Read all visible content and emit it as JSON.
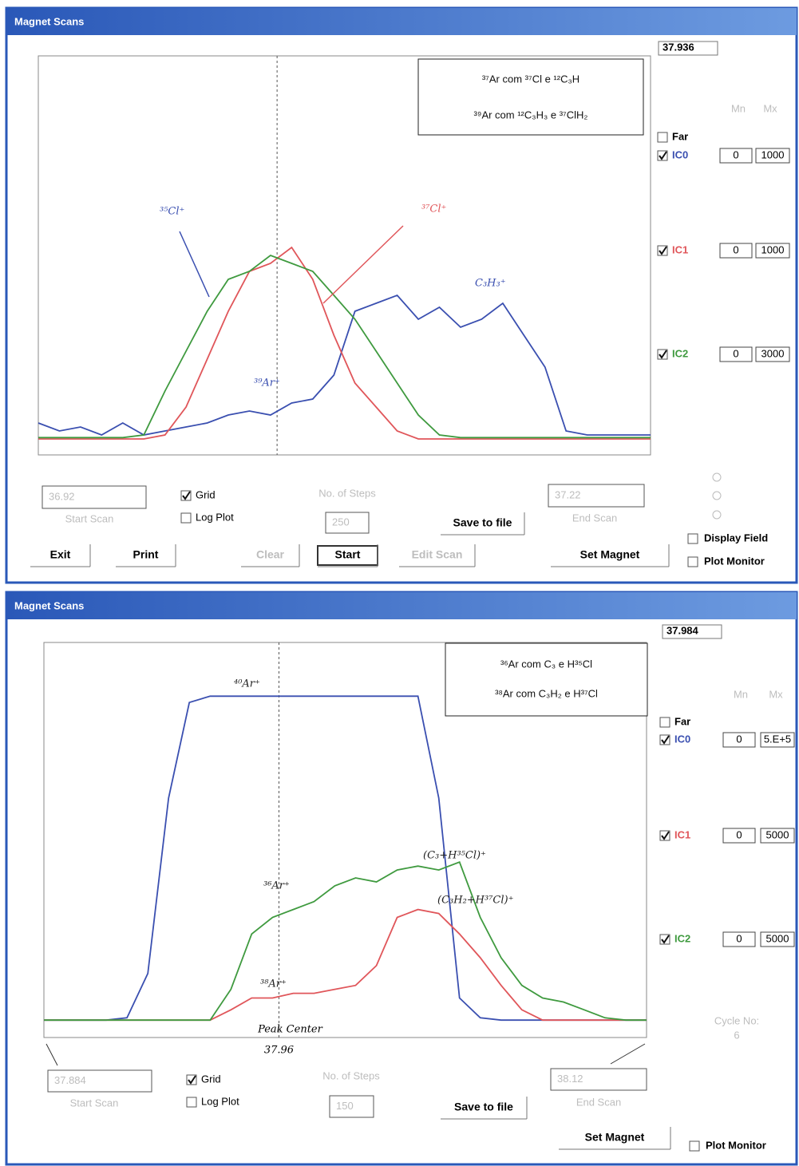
{
  "windows": [
    {
      "title": "Magnet Scans",
      "center_value": "37.936",
      "note": [
        "³⁷Ar com ³⁷Cl e ¹²C₃H",
        "³⁹Ar com ¹²C₃H₃ e ³⁷ClH₂"
      ],
      "annotations": [
        "³⁵Cl⁺",
        "³⁷Cl⁺",
        "C₃H₃⁺",
        "³⁹Ar⁺"
      ],
      "column_headers": [
        "Mn",
        "Mx"
      ],
      "far": {
        "label": "Far",
        "checked": false
      },
      "detectors": [
        {
          "name": "IC0",
          "checked": true,
          "color": "#3a4fb0",
          "min": 0,
          "max": 1000,
          "trace": [
            80,
            60,
            70,
            50,
            80,
            50,
            60,
            70,
            80,
            100,
            110,
            100,
            130,
            140,
            200,
            360,
            380,
            400,
            340,
            370,
            320,
            340,
            380,
            300,
            220,
            60,
            50,
            50,
            50,
            50
          ]
        },
        {
          "name": "IC1",
          "checked": true,
          "color": "#e0565a",
          "min": 0,
          "max": 1000,
          "trace": [
            40,
            40,
            40,
            40,
            40,
            40,
            50,
            120,
            240,
            360,
            460,
            480,
            520,
            440,
            300,
            180,
            120,
            60,
            40,
            40,
            40,
            40,
            40,
            40,
            40,
            40,
            40,
            40,
            40,
            40
          ]
        },
        {
          "name": "IC2",
          "checked": true,
          "color": "#3f9a3f",
          "min": 0,
          "max": 3000,
          "trace": [
            130,
            130,
            130,
            130,
            130,
            150,
            480,
            780,
            1080,
            1320,
            1380,
            1500,
            1440,
            1380,
            1200,
            1020,
            780,
            540,
            300,
            150,
            130,
            130,
            130,
            130,
            130,
            130,
            130,
            130,
            130,
            130
          ]
        }
      ],
      "start_scan": {
        "value": 36.92,
        "label": "Start Scan"
      },
      "end_scan": {
        "value": 37.22,
        "label": "End Scan"
      },
      "grid": {
        "label": "Grid",
        "checked": true
      },
      "log_plot": {
        "label": "Log Plot",
        "checked": false
      },
      "steps": {
        "label": "No. of Steps",
        "value": 250
      },
      "save": "Save to file",
      "options": [
        {
          "label": "Display Field",
          "checked": false
        },
        {
          "label": "Plot Monitor",
          "checked": false
        }
      ],
      "buttons": [
        "Exit",
        "Print",
        "Clear",
        "Start",
        "Edit Scan",
        "Set Magnet"
      ]
    },
    {
      "title": "Magnet Scans",
      "center_value": "37.984",
      "note": [
        "³⁶Ar com C₃ e H³⁵Cl",
        "³⁸Ar com C₃H₂ e H³⁷Cl"
      ],
      "annotations": [
        "⁴⁰Ar⁺",
        "³⁶Ar⁺",
        "³⁸Ar⁺",
        "(C₃+H³⁵Cl)⁺",
        "(C₃H₂+H³⁷Cl)⁺"
      ],
      "peak_center": {
        "label": "Peak Center",
        "value": 37.96
      },
      "column_headers": [
        "Mn",
        "Mx"
      ],
      "far": {
        "label": "Far",
        "checked": false
      },
      "detectors": [
        {
          "name": "IC0",
          "checked": true,
          "color": "#3a4fb0",
          "min": 0,
          "max": {
            "value": 500000,
            "label": "5.E+5"
          },
          "trace": [
            22000,
            22000,
            22000,
            22000,
            25000,
            81000,
            303000,
            424000,
            432000,
            432000,
            432000,
            432000,
            432000,
            432000,
            432000,
            432000,
            432000,
            432000,
            432000,
            303000,
            50000,
            25000,
            22000,
            22000,
            22000,
            22000,
            22000,
            22000,
            22000,
            22000
          ]
        },
        {
          "name": "IC1",
          "checked": true,
          "color": "#e0565a",
          "min": 0,
          "max": 5000,
          "trace": [
            220,
            220,
            220,
            220,
            220,
            220,
            220,
            220,
            220,
            350,
            500,
            500,
            560,
            560,
            610,
            660,
            910,
            1520,
            1620,
            1570,
            1310,
            1010,
            660,
            350,
            220,
            220,
            220,
            220,
            220,
            220
          ]
        },
        {
          "name": "IC2",
          "checked": true,
          "color": "#3f9a3f",
          "min": 0,
          "max": 5000,
          "trace": [
            220,
            220,
            220,
            220,
            220,
            220,
            220,
            220,
            220,
            610,
            1310,
            1520,
            1620,
            1720,
            1920,
            2020,
            1970,
            2120,
            2170,
            2120,
            2220,
            1520,
            1010,
            660,
            500,
            450,
            350,
            250,
            220,
            220
          ]
        }
      ],
      "cycle": {
        "label": "Cycle No:",
        "value": 6
      },
      "start_scan": {
        "value": 37.884,
        "label": "Start Scan"
      },
      "end_scan": {
        "value": 38.12,
        "label": "End Scan"
      },
      "grid": {
        "label": "Grid",
        "checked": true
      },
      "log_plot": {
        "label": "Log Plot",
        "checked": false
      },
      "steps": {
        "label": "No. of Steps",
        "value": 150
      },
      "save": "Save to file",
      "options": [
        {
          "label": "Plot Monitor",
          "checked": false
        }
      ],
      "buttons": [
        "Set Magnet"
      ]
    }
  ]
}
